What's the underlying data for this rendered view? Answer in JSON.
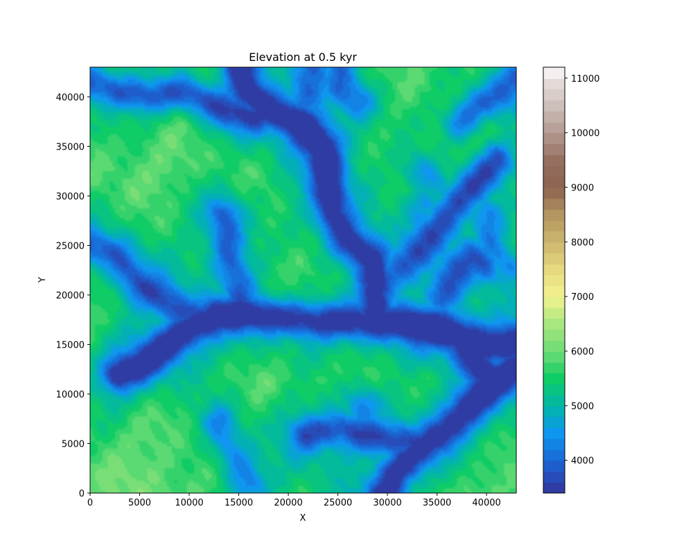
{
  "chart_data": {
    "type": "heatmap",
    "title": "Elevation at 0.5 kyr",
    "xlabel": "X",
    "ylabel": "Y",
    "xlim": [
      0,
      43000
    ],
    "ylim": [
      0,
      43000
    ],
    "x_ticks": [
      0,
      5000,
      10000,
      15000,
      20000,
      25000,
      30000,
      35000,
      40000
    ],
    "y_ticks": [
      0,
      5000,
      10000,
      15000,
      20000,
      25000,
      30000,
      35000,
      40000
    ],
    "x_tick_labels": [
      "0",
      "5000",
      "10000",
      "15000",
      "20000",
      "25000",
      "30000",
      "35000",
      "40000"
    ],
    "y_tick_labels": [
      "0",
      "5000",
      "10000",
      "15000",
      "20000",
      "25000",
      "30000",
      "35000",
      "40000"
    ],
    "colorbar": {
      "range": [
        3400,
        11200
      ],
      "ticks": [
        4000,
        5000,
        6000,
        7000,
        8000,
        9000,
        10000,
        11000
      ],
      "tick_labels": [
        "4000",
        "5000",
        "6000",
        "7000",
        "8000",
        "9000",
        "10000",
        "11000"
      ],
      "colormap": "terrain",
      "stops": [
        {
          "value": 3400,
          "color": "#333399"
        },
        {
          "value": 4000,
          "color": "#1a66d6"
        },
        {
          "value": 4500,
          "color": "#0f96f0"
        },
        {
          "value": 5000,
          "color": "#00b7a8"
        },
        {
          "value": 5500,
          "color": "#0fcc66"
        },
        {
          "value": 6000,
          "color": "#6edc75"
        },
        {
          "value": 6500,
          "color": "#a8e67f"
        },
        {
          "value": 7000,
          "color": "#f2f28f"
        },
        {
          "value": 7500,
          "color": "#e6d97f"
        },
        {
          "value": 8000,
          "color": "#ccb56f"
        },
        {
          "value": 8500,
          "color": "#b39660"
        },
        {
          "value": 9000,
          "color": "#8c6250"
        },
        {
          "value": 9500,
          "color": "#966f60"
        },
        {
          "value": 10000,
          "color": "#b39a90"
        },
        {
          "value": 10500,
          "color": "#cdbfb9"
        },
        {
          "value": 11000,
          "color": "#e8e1de"
        },
        {
          "value": 11200,
          "color": "#ffffff"
        }
      ]
    },
    "valleys": [
      {
        "points": [
          [
            43000,
            15200
          ],
          [
            40000,
            14800
          ],
          [
            37000,
            16000
          ],
          [
            34000,
            16800
          ],
          [
            31000,
            17200
          ],
          [
            28000,
            17200
          ],
          [
            25000,
            17300
          ],
          [
            22000,
            17400
          ],
          [
            19000,
            17800
          ],
          [
            16000,
            18000
          ],
          [
            13000,
            18000
          ],
          [
            10000,
            16500
          ],
          [
            7000,
            14200
          ],
          [
            5000,
            12800
          ],
          [
            3000,
            12000
          ]
        ],
        "depth": 1.0
      },
      {
        "points": [
          [
            28500,
            17500
          ],
          [
            29000,
            21000
          ],
          [
            28500,
            23500
          ],
          [
            26000,
            25500
          ],
          [
            24500,
            28000
          ],
          [
            24000,
            32000
          ],
          [
            23500,
            35000
          ],
          [
            21000,
            37500
          ],
          [
            18500,
            38500
          ],
          [
            16000,
            40500
          ],
          [
            15000,
            43000
          ]
        ],
        "depth": 1.0
      },
      {
        "points": [
          [
            43000,
            12500
          ],
          [
            40500,
            11000
          ],
          [
            38500,
            9000
          ],
          [
            36000,
            6500
          ],
          [
            33500,
            4500
          ],
          [
            31000,
            2000
          ],
          [
            30000,
            0
          ]
        ],
        "depth": 1.0
      },
      {
        "points": [
          [
            37000,
            16000
          ],
          [
            38500,
            14000
          ],
          [
            40500,
            11000
          ]
        ],
        "depth": 0.9
      },
      {
        "points": [
          [
            18500,
            38500
          ],
          [
            16500,
            38000
          ],
          [
            14000,
            38500
          ],
          [
            12000,
            39500
          ],
          [
            9000,
            40500
          ],
          [
            6000,
            40000
          ],
          [
            3000,
            40500
          ],
          [
            0,
            41500
          ]
        ],
        "depth": 0.8
      },
      {
        "points": [
          [
            29000,
            21000
          ],
          [
            31000,
            22500
          ],
          [
            33000,
            24500
          ],
          [
            35000,
            27000
          ],
          [
            37000,
            29500
          ],
          [
            39000,
            31500
          ],
          [
            41000,
            33500
          ]
        ],
        "depth": 0.75
      },
      {
        "points": [
          [
            43000,
            42000
          ],
          [
            41000,
            40000
          ],
          [
            39000,
            39000
          ],
          [
            37500,
            37500
          ]
        ],
        "depth": 0.7
      },
      {
        "points": [
          [
            15500,
            17800
          ],
          [
            15000,
            21000
          ],
          [
            14000,
            24000
          ],
          [
            13500,
            28000
          ]
        ],
        "depth": 0.7
      },
      {
        "points": [
          [
            35500,
            20000
          ],
          [
            37000,
            22500
          ],
          [
            38500,
            24000
          ],
          [
            40000,
            23000
          ]
        ],
        "depth": 0.6
      },
      {
        "points": [
          [
            21000,
            38500
          ],
          [
            22000,
            41000
          ],
          [
            22500,
            43000
          ]
        ],
        "depth": 0.6
      },
      {
        "points": [
          [
            27000,
            39500
          ],
          [
            25500,
            41000
          ],
          [
            25000,
            43000
          ]
        ],
        "depth": 0.5
      },
      {
        "points": [
          [
            33000,
            5000
          ],
          [
            29000,
            5500
          ],
          [
            25500,
            6500
          ],
          [
            22000,
            6000
          ]
        ],
        "depth": 0.75
      },
      {
        "points": [
          [
            27500,
            8800
          ],
          [
            27000,
            7000
          ],
          [
            27000,
            5800
          ]
        ],
        "depth": 0.5
      },
      {
        "points": [
          [
            16000,
            1000
          ],
          [
            14000,
            4500
          ],
          [
            13000,
            7000
          ]
        ],
        "depth": 0.55
      },
      {
        "points": [
          [
            0,
            25000
          ],
          [
            2500,
            24000
          ],
          [
            5000,
            21000
          ],
          [
            7500,
            19500
          ],
          [
            9500,
            18000
          ],
          [
            12000,
            18000
          ]
        ],
        "depth": 0.7
      },
      {
        "points": [
          [
            32000,
            23000
          ],
          [
            33500,
            26000
          ],
          [
            34000,
            29000
          ]
        ],
        "depth": 0.5
      },
      {
        "points": [
          [
            36500,
            28000
          ],
          [
            35000,
            31000
          ],
          [
            33500,
            32500
          ]
        ],
        "depth": 0.45
      },
      {
        "points": [
          [
            40000,
            28000
          ],
          [
            40500,
            25000
          ],
          [
            42000,
            23000
          ]
        ],
        "depth": 0.5
      }
    ]
  }
}
